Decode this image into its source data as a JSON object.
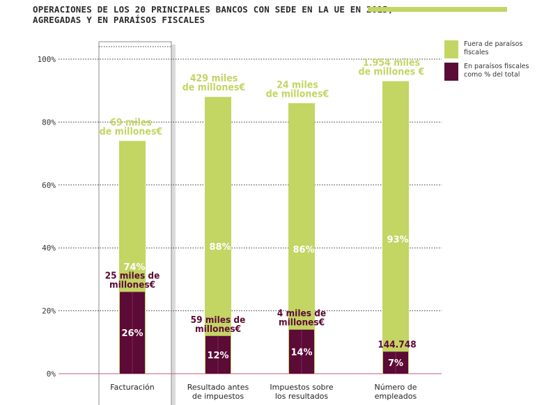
{
  "title": {
    "line1": "OPERACIONES DE LOS 20 PRINCIPALES BANCOS CON SEDE EN LA UE EN 2015,",
    "line2": "AGREGADAS Y EN PARAÍSOS FISCALES"
  },
  "legend": [
    {
      "line1": "Fuera de paraísos",
      "line2": "fiscales",
      "color": "#c3d563"
    },
    {
      "line1": "En paraísos fiscales",
      "line2": "como % del total",
      "color": "#5c0a36"
    }
  ],
  "chart_data": {
    "type": "bar",
    "ylim": [
      0,
      100
    ],
    "yticks": [
      {
        "value": 0,
        "label": "0%"
      },
      {
        "value": 20,
        "label": "20%"
      },
      {
        "value": 40,
        "label": "40%"
      },
      {
        "value": 60,
        "label": "60%"
      },
      {
        "value": 80,
        "label": "80%"
      },
      {
        "value": 100,
        "label": "100%"
      }
    ],
    "highlighted_category": "Facturación",
    "categories": [
      {
        "label_lines": [
          "Facturación"
        ],
        "outside": {
          "value": 74,
          "pct_label": "74%",
          "amount_lines": [
            "69 miles",
            "de millones€"
          ]
        },
        "inside": {
          "value": 26,
          "pct_label": "26%",
          "amount_lines": [
            "25 miles de",
            "millones€"
          ]
        }
      },
      {
        "label_lines": [
          "Resultado antes",
          "de impuestos"
        ],
        "outside": {
          "value": 88,
          "pct_label": "88%",
          "amount_lines": [
            "429 miles",
            "de millones€"
          ]
        },
        "inside": {
          "value": 12,
          "pct_label": "12%",
          "amount_lines": [
            "59 miles de",
            "millones€"
          ]
        }
      },
      {
        "label_lines": [
          "Impuestos sobre",
          "los resultados"
        ],
        "outside": {
          "value": 86,
          "pct_label": "86%",
          "amount_lines": [
            "24 miles",
            "de millones€"
          ]
        },
        "inside": {
          "value": 14,
          "pct_label": "14%",
          "amount_lines": [
            "4 miles de",
            "millones€"
          ]
        }
      },
      {
        "label_lines": [
          "Número de",
          "empleados"
        ],
        "outside": {
          "value": 93,
          "pct_label": "93%",
          "amount_lines": [
            "1.954 miles",
            "de millones €"
          ]
        },
        "inside": {
          "value": 7,
          "pct_label": "7%",
          "amount_lines": [
            "144.748"
          ]
        }
      }
    ]
  }
}
